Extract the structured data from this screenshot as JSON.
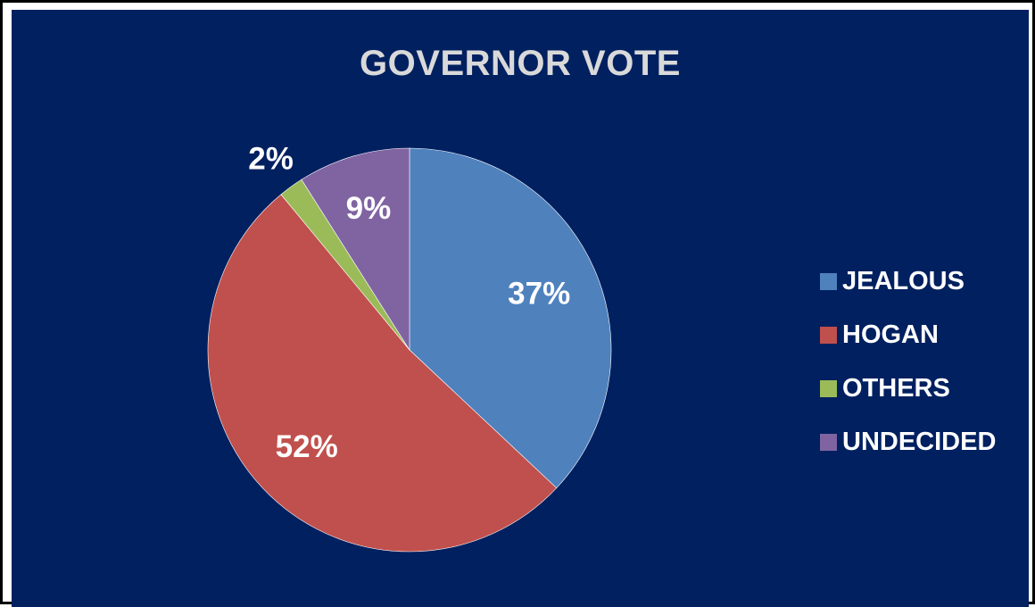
{
  "chart_data": {
    "type": "pie",
    "title": "GOVERNOR VOTE",
    "categories": [
      "JEALOUS",
      "HOGAN",
      "OTHERS",
      "UNDECIDED"
    ],
    "values": [
      37,
      52,
      2,
      9
    ],
    "value_labels": [
      "37%",
      "52%",
      "2%",
      "9%"
    ],
    "colors": [
      "#4f81bd",
      "#c0504d",
      "#9bbb59",
      "#8064a2"
    ],
    "legend_position": "right",
    "start_angle": "12 o'clock, clockwise"
  },
  "style": {
    "background": "#002060",
    "title_color": "#d9d9d9",
    "label_color": "#ffffff"
  }
}
